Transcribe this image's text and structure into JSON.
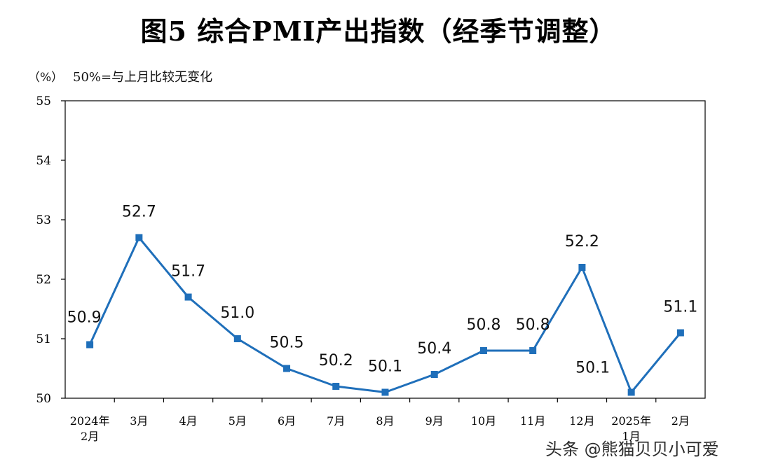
{
  "chart_data": {
    "type": "line",
    "title": "图5  综合PMI产出指数（经季节调整）",
    "unit_label": "（%）",
    "note": "50%=与上月比较无变化",
    "categories": [
      [
        "2024年",
        "2月"
      ],
      [
        "3月"
      ],
      [
        "4月"
      ],
      [
        "5月"
      ],
      [
        "6月"
      ],
      [
        "7月"
      ],
      [
        "8月"
      ],
      [
        "9月"
      ],
      [
        "10月"
      ],
      [
        "11月"
      ],
      [
        "12月"
      ],
      [
        "2025年",
        "1月"
      ],
      [
        "2月"
      ]
    ],
    "series": [
      {
        "values": [
          50.9,
          52.7,
          51.7,
          51.0,
          50.5,
          50.2,
          50.1,
          50.4,
          50.8,
          50.8,
          52.2,
          50.1,
          51.1
        ]
      }
    ],
    "data_labels": [
      "50.9",
      "52.7",
      "51.7",
      "51.0",
      "50.5",
      "50.2",
      "50.1",
      "50.4",
      "50.8",
      "50.8",
      "52.2",
      "50.1",
      "51.1"
    ],
    "ylim": [
      50,
      55
    ],
    "yticks": [
      "50",
      "51",
      "52",
      "53",
      "54",
      "55"
    ],
    "grid": false,
    "line_color": "#1f6fba"
  },
  "watermark": "头条 @熊猫贝贝小可爱"
}
